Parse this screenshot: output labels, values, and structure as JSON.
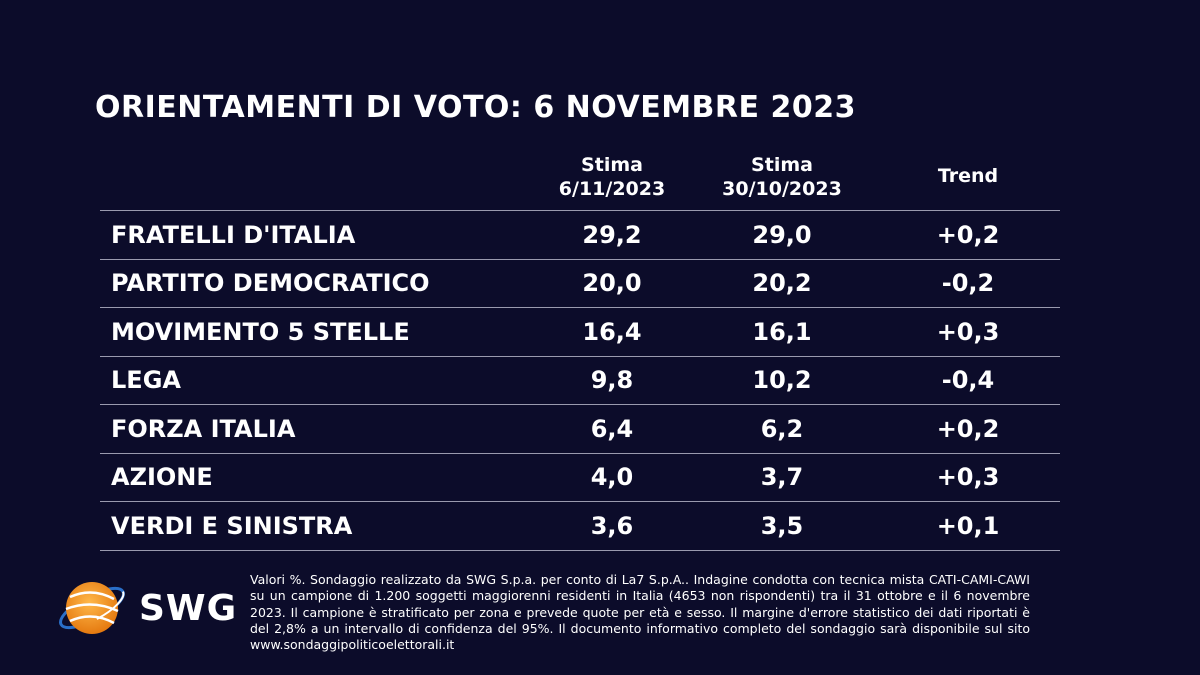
{
  "chart_data": {
    "type": "table",
    "title": "ORIENTAMENTI DI VOTO: 6 NOVEMBRE 2023",
    "columns": [
      {
        "line1": "Stima",
        "line2": "6/11/2023"
      },
      {
        "line1": "Stima",
        "line2": "30/10/2023"
      },
      {
        "line1": "Trend",
        "line2": ""
      }
    ],
    "rows": [
      {
        "party": "FRATELLI D'ITALIA",
        "stima_6_11": "29,2",
        "stima_30_10": "29,0",
        "trend": "+0,2"
      },
      {
        "party": "PARTITO DEMOCRATICO",
        "stima_6_11": "20,0",
        "stima_30_10": "20,2",
        "trend": "-0,2"
      },
      {
        "party": "MOVIMENTO 5 STELLE",
        "stima_6_11": "16,4",
        "stima_30_10": "16,1",
        "trend": "+0,3"
      },
      {
        "party": "LEGA",
        "stima_6_11": "9,8",
        "stima_30_10": "10,2",
        "trend": "-0,4"
      },
      {
        "party": "FORZA ITALIA",
        "stima_6_11": "6,4",
        "stima_30_10": "6,2",
        "trend": "+0,2"
      },
      {
        "party": "AZIONE",
        "stima_6_11": "4,0",
        "stima_30_10": "3,7",
        "trend": "+0,3"
      },
      {
        "party": "VERDI E SINISTRA",
        "stima_6_11": "3,6",
        "stima_30_10": "3,5",
        "trend": "+0,1"
      }
    ]
  },
  "logo": {
    "text": "SWG",
    "orange": "#f59a1e",
    "blue": "#1f6fc0"
  },
  "footnote": "Valori %. Sondaggio realizzato da SWG S.p.a. per conto di La7 S.p.A.. Indagine condotta con tecnica mista CATI-CAMI-CAWI su un campione di 1.200 soggetti maggiorenni residenti in Italia (4653 non rispondenti) tra il 31 ottobre e il 6 novembre 2023. Il campione è stratificato per zona e prevede quote per età e sesso. Il margine d'errore statistico dei dati riportati è del 2,8% a un intervallo di confidenza del 95%. Il documento informativo completo del sondaggio sarà disponibile sul sito www.sondaggipoliticoelettorali.it",
  "colors": {
    "background": "#0c0c2a",
    "text": "#ffffff",
    "rule": "#9a9aae"
  }
}
